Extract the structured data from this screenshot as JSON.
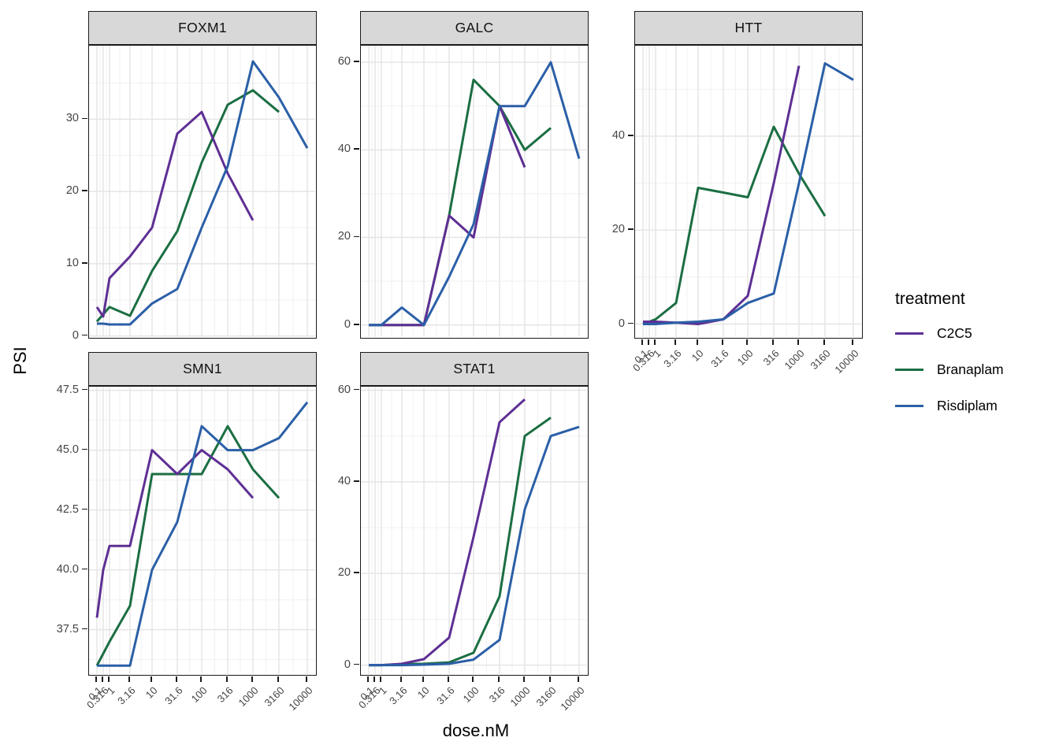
{
  "figure": {
    "y_axis_title": "PSI",
    "x_axis_title": "dose.nM"
  },
  "legend": {
    "title": "treatment",
    "items": [
      {
        "label": "C2C5",
        "color": "#5e2f94"
      },
      {
        "label": "Branaplam",
        "color": "#1b6e42"
      },
      {
        "label": "Risdiplam",
        "color": "#2b5fa7"
      }
    ]
  },
  "chart_data": {
    "type": "line",
    "title": "",
    "xlabel": "dose.nM",
    "ylabel": "PSI",
    "x_scale": "pseudo-log",
    "grid": true,
    "legend_position": "right",
    "x_ticks": [
      "0.1",
      "0.316",
      "1",
      "3.16",
      "10",
      "31.6",
      "100",
      "316",
      "1000",
      "3160",
      "10000"
    ],
    "panels": [
      {
        "title": "FOXM1",
        "row": 0,
        "col": 0,
        "show_x_axis": false,
        "y_ticks": [
          "0",
          "10",
          "20",
          "30"
        ],
        "y_tick_values": [
          0,
          10,
          20,
          30
        ],
        "ylim": [
          -0.3,
          40
        ],
        "series": [
          {
            "name": "C2C5",
            "doses": [
              "0.1",
              "0.316",
              "1",
              "3.16",
              "10",
              "31.6",
              "100",
              "316",
              "1000"
            ],
            "values": [
              4,
              2.7,
              8,
              11,
              15,
              28,
              31,
              22.5,
              16
            ]
          },
          {
            "name": "Branaplam",
            "doses": [
              "0.1",
              "0.316",
              "1",
              "3.16",
              "10",
              "31.6",
              "100",
              "316",
              "1000",
              "3160"
            ],
            "values": [
              2,
              3,
              4,
              2.8,
              9,
              14.5,
              24,
              32,
              34,
              31
            ]
          },
          {
            "name": "Risdiplam",
            "doses": [
              "0.1",
              "0.316",
              "1",
              "3.16",
              "10",
              "31.6",
              "100",
              "316",
              "1000",
              "3160",
              "10000"
            ],
            "values": [
              1.7,
              1.7,
              1.6,
              1.6,
              4.5,
              6.5,
              15,
              23.5,
              38,
              33,
              26
            ]
          }
        ]
      },
      {
        "title": "GALC",
        "row": 0,
        "col": 1,
        "show_x_axis": false,
        "y_ticks": [
          "0",
          "20",
          "40",
          "60"
        ],
        "y_tick_values": [
          0,
          20,
          40,
          60
        ],
        "ylim": [
          -3,
          63.5
        ],
        "series": [
          {
            "name": "C2C5",
            "doses": [
              "0.1",
              "0.316",
              "1",
              "3.16",
              "10",
              "31.6",
              "100",
              "316",
              "1000"
            ],
            "values": [
              0,
              0,
              0,
              0,
              0,
              25,
              20,
              50,
              36
            ]
          },
          {
            "name": "Branaplam",
            "doses": [
              "0.1",
              "0.316",
              "1",
              "3.16",
              "10",
              "31.6",
              "100",
              "316",
              "1000",
              "3160"
            ],
            "values": [
              0,
              0,
              0,
              0,
              0,
              25,
              56,
              50,
              40,
              45
            ]
          },
          {
            "name": "Risdiplam",
            "doses": [
              "0.1",
              "0.316",
              "1",
              "3.16",
              "10",
              "31.6",
              "100",
              "316",
              "1000",
              "3160",
              "10000"
            ],
            "values": [
              0,
              0,
              0,
              4,
              0,
              11,
              23,
              50,
              50,
              60,
              38
            ]
          }
        ]
      },
      {
        "title": "HTT",
        "row": 0,
        "col": 2,
        "show_x_axis": true,
        "y_ticks": [
          "0",
          "20",
          "40"
        ],
        "y_tick_values": [
          0,
          20,
          40
        ],
        "ylim": [
          -3,
          59
        ],
        "series": [
          {
            "name": "C2C5",
            "doses": [
              "0.1",
              "0.316",
              "1",
              "3.16",
              "10",
              "31.6",
              "100",
              "316",
              "1000"
            ],
            "values": [
              0.5,
              0.5,
              0.5,
              0.3,
              0,
              1,
              6,
              30,
              55
            ]
          },
          {
            "name": "Branaplam",
            "doses": [
              "0.1",
              "0.316",
              "1",
              "3.16",
              "10",
              "31.6",
              "100",
              "316",
              "1000",
              "3160"
            ],
            "values": [
              0,
              0.5,
              1,
              4.5,
              29,
              28,
              27,
              42,
              32,
              23
            ]
          },
          {
            "name": "Risdiplam",
            "doses": [
              "0.1",
              "0.316",
              "1",
              "3.16",
              "10",
              "31.6",
              "100",
              "316",
              "1000",
              "3160",
              "10000"
            ],
            "values": [
              0,
              0,
              0,
              0.3,
              0.5,
              1,
              4.5,
              6.5,
              30,
              55.5,
              52
            ]
          }
        ]
      },
      {
        "title": "SMN1",
        "row": 1,
        "col": 0,
        "show_x_axis": true,
        "y_ticks": [
          "37.5",
          "40.0",
          "42.5",
          "45.0",
          "47.5"
        ],
        "y_tick_values": [
          37.5,
          40,
          42.5,
          45,
          47.5
        ],
        "ylim": [
          35.6,
          47.6
        ],
        "series": [
          {
            "name": "C2C5",
            "doses": [
              "0.1",
              "0.316",
              "1",
              "3.16",
              "10",
              "31.6",
              "100",
              "316",
              "1000"
            ],
            "values": [
              38,
              40,
              41,
              41,
              45,
              44,
              45,
              44.2,
              43
            ]
          },
          {
            "name": "Branaplam",
            "doses": [
              "0.1",
              "0.316",
              "1",
              "3.16",
              "10",
              "31.6",
              "100",
              "316",
              "1000",
              "3160"
            ],
            "values": [
              36,
              36.5,
              37,
              38.5,
              44,
              44,
              44,
              46,
              44.2,
              43
            ]
          },
          {
            "name": "Risdiplam",
            "doses": [
              "0.1",
              "0.316",
              "1",
              "3.16",
              "10",
              "31.6",
              "100",
              "316",
              "1000",
              "3160",
              "10000"
            ],
            "values": [
              36,
              36,
              36,
              36,
              40,
              42,
              46,
              45,
              45,
              45.5,
              47
            ]
          }
        ]
      },
      {
        "title": "STAT1",
        "row": 1,
        "col": 1,
        "show_x_axis": true,
        "y_ticks": [
          "0",
          "20",
          "40",
          "60"
        ],
        "y_tick_values": [
          0,
          20,
          40,
          60
        ],
        "ylim": [
          -2.2,
          60.5
        ],
        "series": [
          {
            "name": "C2C5",
            "doses": [
              "0.1",
              "0.316",
              "1",
              "3.16",
              "10",
              "31.6",
              "100",
              "316",
              "1000"
            ],
            "values": [
              0,
              0,
              0,
              0.3,
              1.3,
              6,
              28,
              53,
              58
            ]
          },
          {
            "name": "Branaplam",
            "doses": [
              "0.1",
              "0.316",
              "1",
              "3.16",
              "10",
              "31.6",
              "100",
              "316",
              "1000",
              "3160"
            ],
            "values": [
              0,
              0,
              0,
              0.2,
              0.3,
              0.6,
              2.7,
              15,
              50,
              54
            ]
          },
          {
            "name": "Risdiplam",
            "doses": [
              "0.1",
              "0.316",
              "1",
              "3.16",
              "10",
              "31.6",
              "100",
              "316",
              "1000",
              "3160",
              "10000"
            ],
            "values": [
              0,
              0,
              0,
              0,
              0.1,
              0.3,
              1.2,
              5.5,
              34,
              50,
              52
            ]
          }
        ]
      }
    ]
  }
}
